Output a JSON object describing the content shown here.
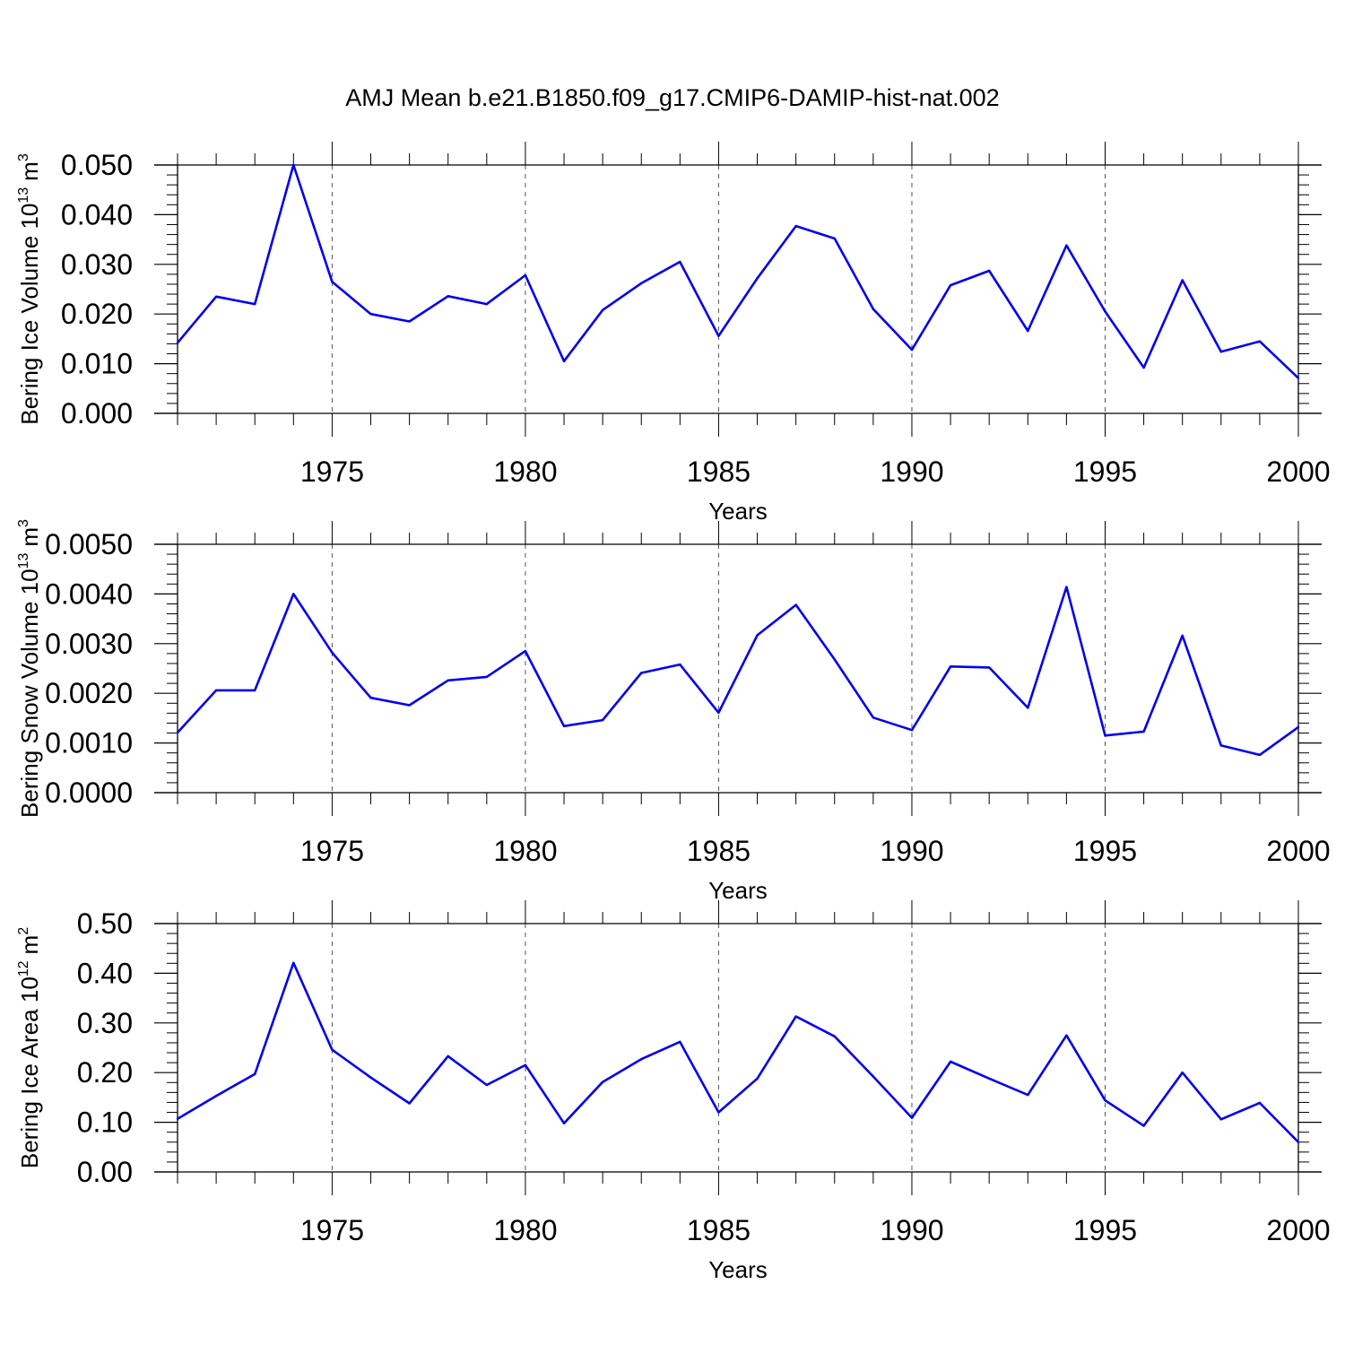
{
  "title": "AMJ Mean b.e21.B1850.f09_g17.CMIP6-DAMIP-hist-nat.002",
  "colors": {
    "line": "#0000ee",
    "axis": "#000000",
    "grid": "#555555"
  },
  "chart_data": [
    {
      "type": "line",
      "name": "ice-volume",
      "ylabel_base": "Bering Ice Volume 10",
      "ylabel_exp": "13",
      "ylabel_unit": "m",
      "ylabel_unit_exp": "3",
      "xlabel": "Years",
      "xlim": [
        1971,
        2000
      ],
      "ylim": [
        0,
        0.05
      ],
      "yticks": [
        "0.000",
        "0.010",
        "0.020",
        "0.030",
        "0.040",
        "0.050"
      ],
      "xticks": [
        "1975",
        "1980",
        "1985",
        "1990",
        "1995",
        "2000"
      ],
      "x": [
        1971,
        1972,
        1973,
        1974,
        1975,
        1976,
        1977,
        1978,
        1979,
        1980,
        1981,
        1982,
        1983,
        1984,
        1985,
        1986,
        1987,
        1988,
        1989,
        1990,
        1991,
        1992,
        1993,
        1994,
        1995,
        1996,
        1997,
        1998,
        1999,
        2000
      ],
      "values": [
        0.0142,
        0.0235,
        0.022,
        0.05,
        0.0265,
        0.02,
        0.0185,
        0.0236,
        0.022,
        0.0278,
        0.0105,
        0.0208,
        0.0262,
        0.0305,
        0.0156,
        0.0272,
        0.0377,
        0.0352,
        0.021,
        0.0128,
        0.0258,
        0.0287,
        0.0166,
        0.0338,
        0.0205,
        0.0092,
        0.0268,
        0.0124,
        0.0145,
        0.0071
      ]
    },
    {
      "type": "line",
      "name": "snow-volume",
      "ylabel_base": "Bering Snow Volume 10",
      "ylabel_exp": "13",
      "ylabel_unit": "m",
      "ylabel_unit_exp": "3",
      "xlabel": "Years",
      "xlim": [
        1971,
        2000
      ],
      "ylim": [
        0,
        0.005
      ],
      "yticks": [
        "0.0000",
        "0.0010",
        "0.0020",
        "0.0030",
        "0.0040",
        "0.0050"
      ],
      "xticks": [
        "1975",
        "1980",
        "1985",
        "1990",
        "1995",
        "2000"
      ],
      "x": [
        1971,
        1972,
        1973,
        1974,
        1975,
        1976,
        1977,
        1978,
        1979,
        1980,
        1981,
        1982,
        1983,
        1984,
        1985,
        1986,
        1987,
        1988,
        1989,
        1990,
        1991,
        1992,
        1993,
        1994,
        1995,
        1996,
        1997,
        1998,
        1999,
        2000
      ],
      "values": [
        0.00121,
        0.00206,
        0.00206,
        0.004,
        0.00282,
        0.00191,
        0.00176,
        0.00226,
        0.00233,
        0.00285,
        0.00134,
        0.00146,
        0.00241,
        0.00258,
        0.00161,
        0.00317,
        0.00378,
        0.00268,
        0.00151,
        0.00126,
        0.00254,
        0.00252,
        0.00171,
        0.00414,
        0.00115,
        0.00123,
        0.00316,
        0.00095,
        0.00076,
        0.00132
      ]
    },
    {
      "type": "line",
      "name": "ice-area",
      "ylabel_base": "Bering Ice Area 10",
      "ylabel_exp": "12",
      "ylabel_unit": "m",
      "ylabel_unit_exp": "2",
      "xlabel": "Years",
      "xlim": [
        1971,
        2000
      ],
      "ylim": [
        0,
        0.5
      ],
      "yticks": [
        "0.00",
        "0.10",
        "0.20",
        "0.30",
        "0.40",
        "0.50"
      ],
      "xticks": [
        "1975",
        "1980",
        "1985",
        "1990",
        "1995",
        "2000"
      ],
      "x": [
        1971,
        1972,
        1973,
        1974,
        1975,
        1976,
        1977,
        1978,
        1979,
        1980,
        1981,
        1982,
        1983,
        1984,
        1985,
        1986,
        1987,
        1988,
        1989,
        1990,
        1991,
        1992,
        1993,
        1994,
        1995,
        1996,
        1997,
        1998,
        1999,
        2000
      ],
      "values": [
        0.107,
        0.153,
        0.197,
        0.421,
        0.246,
        0.19,
        0.138,
        0.233,
        0.175,
        0.215,
        0.098,
        0.181,
        0.227,
        0.262,
        0.12,
        0.188,
        0.313,
        0.273,
        0.192,
        0.109,
        0.222,
        0.188,
        0.155,
        0.275,
        0.144,
        0.093,
        0.2,
        0.106,
        0.139,
        0.06
      ]
    }
  ]
}
